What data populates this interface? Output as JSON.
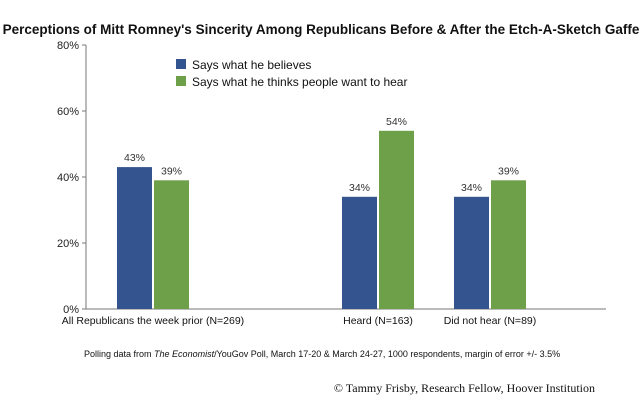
{
  "chart_data": {
    "type": "bar",
    "title": "Perceptions of Mitt Romney's Sincerity Among Republicans Before & After the Etch-A-Sketch Gaffe",
    "categories": [
      "All Republicans the week prior (N=269)",
      "Heard (N=163)",
      "Did not hear (N=89)"
    ],
    "series": [
      {
        "name": "Says what he believes",
        "color": "#33548e",
        "values": [
          43,
          34,
          34
        ],
        "labels": [
          "43%",
          "34%",
          "34%"
        ]
      },
      {
        "name": "Says what he thinks people want to hear",
        "color": "#6ea04a",
        "values": [
          39,
          54,
          39
        ],
        "labels": [
          "39%",
          "54%",
          "39%"
        ]
      }
    ],
    "ylim": [
      0,
      80
    ],
    "yticks": [
      0,
      20,
      40,
      60,
      80
    ],
    "ytick_labels": [
      "0%",
      "20%",
      "40%",
      "60%",
      "80%"
    ],
    "xlabel": "",
    "ylabel": "",
    "grid": false,
    "legend_position": "top-left"
  },
  "footnote": {
    "prefix": "Polling data from ",
    "source_italic": "The Economist",
    "suffix": "/YouGov Poll, March 17-20 & March 24-27, 1000 respondents, margin of error +/- 3.5%"
  },
  "credit": "© Tammy Frisby, Research Fellow, Hoover Institution"
}
